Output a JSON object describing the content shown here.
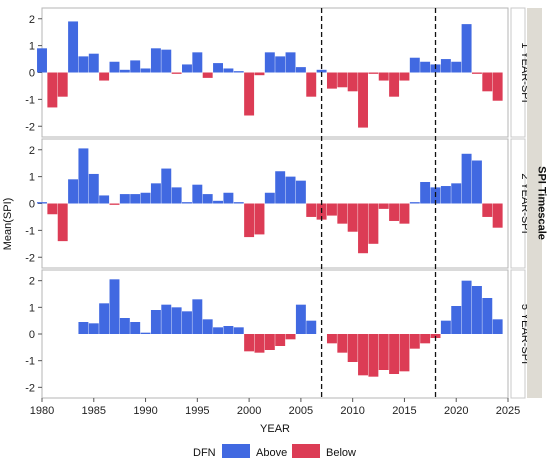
{
  "chart_data": {
    "type": "bar",
    "xlabel": "YEAR",
    "ylabel": "Mean(SPI)",
    "facet_title": "SPI Timescale",
    "xlim": [
      1980,
      2025
    ],
    "x_ticks": [
      "1980",
      "1985",
      "1990",
      "1995",
      "2000",
      "2005",
      "2010",
      "2015",
      "2020",
      "2025"
    ],
    "ylim": [
      -2.4,
      2.4
    ],
    "y_ticks": [
      "-2",
      "-1",
      "0",
      "1",
      "2"
    ],
    "vertical_reference_lines": [
      2007,
      2018
    ],
    "legend": {
      "title": "DFN",
      "items": [
        {
          "label": "Above",
          "color": "#4169e1"
        },
        {
          "label": "Below",
          "color": "#dc3c55"
        }
      ]
    },
    "years": [
      1980,
      1981,
      1982,
      1983,
      1984,
      1985,
      1986,
      1987,
      1988,
      1989,
      1990,
      1991,
      1992,
      1993,
      1994,
      1995,
      1996,
      1997,
      1998,
      1999,
      2000,
      2001,
      2002,
      2003,
      2004,
      2005,
      2006,
      2007,
      2008,
      2009,
      2010,
      2011,
      2012,
      2013,
      2014,
      2015,
      2016,
      2017,
      2018,
      2019,
      2020,
      2021,
      2022,
      2023,
      2024
    ],
    "panels": [
      {
        "label": "1 YEAR-SPI",
        "values": [
          0.9,
          -1.3,
          -0.9,
          1.9,
          0.6,
          0.7,
          -0.3,
          0.4,
          0.1,
          0.45,
          0.15,
          0.9,
          0.85,
          -0.05,
          0.3,
          0.75,
          -0.2,
          0.35,
          0.15,
          0.05,
          -1.6,
          -0.1,
          0.75,
          0.6,
          0.75,
          0.2,
          -0.9,
          0.1,
          -0.6,
          -0.55,
          -0.7,
          -2.05,
          -0.05,
          -0.3,
          -0.9,
          -0.3,
          0.55,
          0.4,
          0.3,
          0.5,
          0.4,
          1.8,
          -0.05,
          -0.7,
          -1.05
        ]
      },
      {
        "label": "2 YEAR-SPI",
        "values": [
          0.05,
          -0.4,
          -1.4,
          0.9,
          2.05,
          1.1,
          0.3,
          -0.05,
          0.35,
          0.35,
          0.4,
          0.75,
          1.3,
          0.6,
          0.05,
          0.7,
          0.35,
          0.1,
          0.4,
          0.05,
          -1.25,
          -1.15,
          0.4,
          1.2,
          1.0,
          0.85,
          -0.5,
          -0.6,
          -0.45,
          -0.75,
          -1.05,
          -1.85,
          -1.5,
          -0.2,
          -0.65,
          -0.75,
          0.05,
          0.8,
          0.6,
          0.65,
          0.75,
          1.85,
          1.6,
          -0.5,
          -0.9
        ]
      },
      {
        "label": "5 YEAR-SPI",
        "values": [
          0.0,
          0.0,
          0.0,
          0.0,
          0.45,
          0.4,
          1.15,
          2.05,
          0.6,
          0.45,
          0.05,
          0.9,
          1.1,
          1.0,
          0.85,
          1.3,
          0.55,
          0.25,
          0.3,
          0.25,
          -0.65,
          -0.7,
          -0.6,
          -0.45,
          -0.2,
          1.1,
          0.5,
          0.0,
          -0.35,
          -0.7,
          -1.05,
          -1.55,
          -1.6,
          -1.35,
          -1.5,
          -1.4,
          -0.55,
          -0.35,
          -0.15,
          0.5,
          1.05,
          2.0,
          1.8,
          1.35,
          0.55
        ]
      }
    ]
  }
}
